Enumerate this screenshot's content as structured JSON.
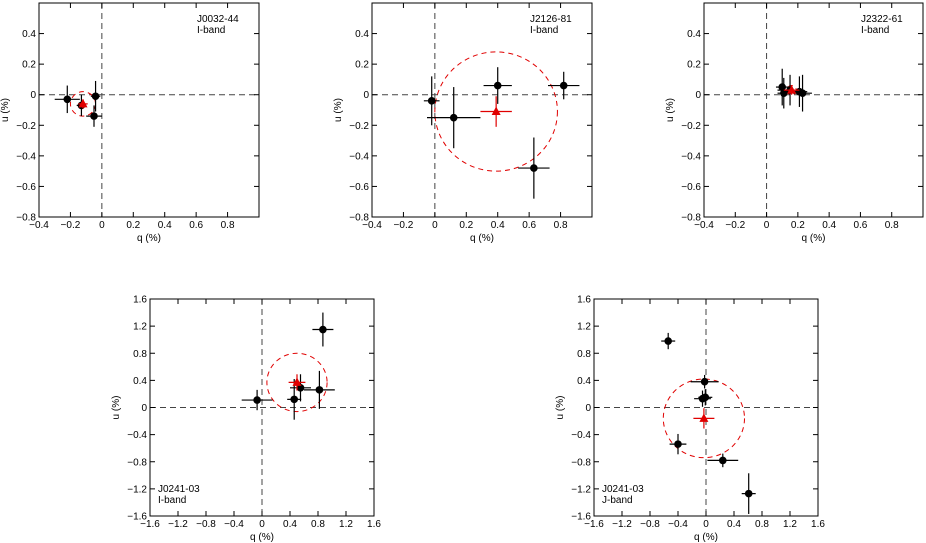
{
  "figure": {
    "background": "#ffffff",
    "point_color": "#000000",
    "mean_color": "#e00000"
  },
  "chart_data": [
    {
      "type": "scatter",
      "title": "J0032-44",
      "band": "I-band",
      "legend_position": "top-right",
      "xlabel": "q (%)",
      "ylabel": "u (%)",
      "xlim": [
        -0.4,
        1.0
      ],
      "ylim": [
        -0.8,
        0.6
      ],
      "xticks": [
        "−0.4",
        "−0.2",
        "0",
        "0.2",
        "0.4",
        "0.6",
        "0.8"
      ],
      "yticks": [
        "−0.8",
        "−0.6",
        "−0.4",
        "−0.2",
        "0",
        "0.2",
        "0.4"
      ],
      "xtick_values": [
        -0.4,
        -0.2,
        0,
        0.2,
        0.4,
        0.6,
        0.8
      ],
      "ytick_values": [
        -0.8,
        -0.6,
        -0.4,
        -0.2,
        0,
        0.2,
        0.4
      ],
      "points": [
        {
          "q": -0.22,
          "u": -0.03,
          "q_err": 0.08,
          "u_err": 0.09
        },
        {
          "q": -0.13,
          "u": -0.07,
          "q_err": 0.03,
          "u_err": 0.07
        },
        {
          "q": -0.04,
          "u": -0.01,
          "q_err": 0.03,
          "u_err": 0.1
        },
        {
          "q": -0.05,
          "u": -0.14,
          "q_err": 0.05,
          "u_err": 0.07
        }
      ],
      "mean": {
        "q": -0.12,
        "u": -0.06,
        "q_err": 0.03,
        "u_err": 0.03
      },
      "circle_radius": 0.08
    },
    {
      "type": "scatter",
      "title": "J2126-81",
      "band": "I-band",
      "legend_position": "top-right",
      "xlabel": "q (%)",
      "ylabel": "u (%)",
      "xlim": [
        -0.4,
        1.0
      ],
      "ylim": [
        -0.8,
        0.6
      ],
      "xticks": [
        "−0.4",
        "−0.2",
        "0",
        "0.2",
        "0.4",
        "0.6",
        "0.8"
      ],
      "yticks": [
        "−0.8",
        "−0.6",
        "−0.4",
        "−0.2",
        "0",
        "0.2",
        "0.4"
      ],
      "xtick_values": [
        -0.4,
        -0.2,
        0,
        0.2,
        0.4,
        0.6,
        0.8
      ],
      "ytick_values": [
        -0.8,
        -0.6,
        -0.4,
        -0.2,
        0,
        0.2,
        0.4
      ],
      "points": [
        {
          "q": -0.02,
          "u": -0.04,
          "q_err": 0.05,
          "u_err": 0.16
        },
        {
          "q": 0.12,
          "u": -0.15,
          "q_err": 0.17,
          "u_err": 0.2
        },
        {
          "q": 0.4,
          "u": 0.06,
          "q_err": 0.09,
          "u_err": 0.12
        },
        {
          "q": 0.82,
          "u": 0.06,
          "q_err": 0.1,
          "u_err": 0.09
        },
        {
          "q": 0.63,
          "u": -0.48,
          "q_err": 0.1,
          "u_err": 0.2
        }
      ],
      "mean": {
        "q": 0.39,
        "u": -0.11,
        "q_err": 0.1,
        "u_err": 0.1
      },
      "circle_radius": 0.39
    },
    {
      "type": "scatter",
      "title": "J2322-61",
      "band": "I-band",
      "legend_position": "top-right",
      "xlabel": "q (%)",
      "ylabel": "u (%)",
      "xlim": [
        -0.4,
        1.0
      ],
      "ylim": [
        -0.8,
        0.6
      ],
      "xticks": [
        "−0.4",
        "−0.2",
        "0",
        "0.2",
        "0.4",
        "0.6",
        "0.8"
      ],
      "yticks": [
        "−0.8",
        "−0.6",
        "−0.4",
        "−0.2",
        "0",
        "0.2",
        "0.4"
      ],
      "xtick_values": [
        -0.4,
        -0.2,
        0,
        0.2,
        0.4,
        0.6,
        0.8
      ],
      "ytick_values": [
        -0.8,
        -0.6,
        -0.4,
        -0.2,
        0,
        0.2,
        0.4
      ],
      "points": [
        {
          "q": 0.1,
          "u": 0.05,
          "q_err": 0.04,
          "u_err": 0.12
        },
        {
          "q": 0.11,
          "u": 0.01,
          "q_err": 0.04,
          "u_err": 0.1
        },
        {
          "q": 0.15,
          "u": 0.03,
          "q_err": 0.08,
          "u_err": 0.1
        },
        {
          "q": 0.21,
          "u": 0.02,
          "q_err": 0.05,
          "u_err": 0.1
        },
        {
          "q": 0.23,
          "u": 0.01,
          "q_err": 0.06,
          "u_err": 0.12
        }
      ],
      "mean": {
        "q": 0.16,
        "u": 0.03,
        "q_err": 0.05,
        "u_err": 0.03
      },
      "circle_radius": 0.03
    },
    {
      "type": "scatter",
      "title": "J0241-03",
      "band": "I-band",
      "legend_position": "bottom-left",
      "xlabel": "q (%)",
      "ylabel": "u (%)",
      "xlim": [
        -1.6,
        1.6
      ],
      "ylim": [
        -1.6,
        1.6
      ],
      "xticks": [
        "−1.6",
        "−1.2",
        "−0.8",
        "−0.4",
        "0",
        "0.4",
        "0.8",
        "1.2",
        "1.6"
      ],
      "yticks": [
        "−1.6",
        "−1.2",
        "−0.8",
        "−0.4",
        "0",
        "0.4",
        "0.8",
        "1.2",
        "1.6"
      ],
      "xtick_values": [
        -1.6,
        -1.2,
        -0.8,
        -0.4,
        0,
        0.4,
        0.8,
        1.2,
        1.6
      ],
      "ytick_values": [
        -1.6,
        -1.2,
        -0.8,
        -0.4,
        0,
        0.4,
        0.8,
        1.2,
        1.6
      ],
      "points": [
        {
          "q": -0.07,
          "u": 0.11,
          "q_err": 0.22,
          "u_err": 0.15
        },
        {
          "q": 0.46,
          "u": 0.12,
          "q_err": 0.1,
          "u_err": 0.3
        },
        {
          "q": 0.55,
          "u": 0.29,
          "q_err": 0.15,
          "u_err": 0.2
        },
        {
          "q": 0.82,
          "u": 0.26,
          "q_err": 0.22,
          "u_err": 0.28
        },
        {
          "q": 0.87,
          "u": 1.15,
          "q_err": 0.15,
          "u_err": 0.25
        }
      ],
      "mean": {
        "q": 0.5,
        "u": 0.37,
        "q_err": 0.12,
        "u_err": 0.12
      },
      "circle_radius": 0.43
    },
    {
      "type": "scatter",
      "title": "J0241-03",
      "band": "J-band",
      "legend_position": "bottom-left",
      "xlabel": "q (%)",
      "ylabel": "u (%)",
      "xlim": [
        -1.6,
        1.6
      ],
      "ylim": [
        -1.6,
        1.6
      ],
      "xticks": [
        "−1.6",
        "−1.2",
        "−0.8",
        "−0.4",
        "0",
        "0.4",
        "0.8",
        "1.2",
        "1.6"
      ],
      "yticks": [
        "−1.6",
        "−1.2",
        "−0.8",
        "−0.4",
        "0",
        "0.4",
        "0.8",
        "1.2",
        "1.6"
      ],
      "xtick_values": [
        -1.6,
        -1.2,
        -0.8,
        -0.4,
        0,
        0.4,
        0.8,
        1.2,
        1.6
      ],
      "ytick_values": [
        -1.6,
        -1.2,
        -0.8,
        -0.4,
        0,
        0.4,
        0.8,
        1.2,
        1.6
      ],
      "points": [
        {
          "q": -0.54,
          "u": 0.98,
          "q_err": 0.1,
          "u_err": 0.12
        },
        {
          "q": -0.02,
          "u": 0.38,
          "q_err": 0.2,
          "u_err": 0.1
        },
        {
          "q": -0.05,
          "u": 0.13,
          "q_err": 0.12,
          "u_err": 0.12
        },
        {
          "q": -0.01,
          "u": 0.15,
          "q_err": 0.1,
          "u_err": 0.12
        },
        {
          "q": -0.4,
          "u": -0.54,
          "q_err": 0.12,
          "u_err": 0.15
        },
        {
          "q": 0.24,
          "u": -0.78,
          "q_err": 0.22,
          "u_err": 0.1
        },
        {
          "q": 0.61,
          "u": -1.27,
          "q_err": 0.1,
          "u_err": 0.3
        }
      ],
      "mean": {
        "q": -0.03,
        "u": -0.16,
        "q_err": 0.15,
        "u_err": 0.15
      },
      "circle_radius": 0.58
    }
  ]
}
